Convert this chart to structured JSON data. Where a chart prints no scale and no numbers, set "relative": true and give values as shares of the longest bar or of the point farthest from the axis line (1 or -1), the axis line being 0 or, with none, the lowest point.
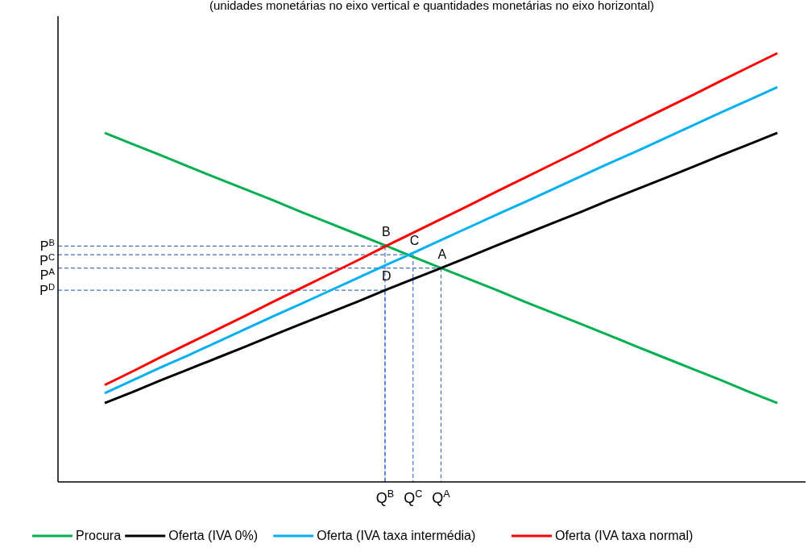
{
  "chart_data": {
    "type": "line",
    "title": "(unidades monetárias no eixo vertical e quantidades monetárias no eixo horizontal)",
    "relative": true,
    "categories": [
      null,
      null,
      null,
      null,
      null,
      null,
      null,
      null,
      null,
      null,
      "Q$^{B}$",
      "Q$^{C}$",
      "Q$^{A}$",
      null,
      null,
      null,
      null,
      null,
      null,
      null,
      null,
      null,
      null,
      null,
      null
    ],
    "series": [
      {
        "name": "Procura",
        "color": "#00b050",
        "values": [
          0.814,
          0.788,
          0.762,
          0.735,
          0.709,
          0.683,
          0.657,
          0.63,
          0.604,
          0.578,
          0.552,
          0.525,
          0.499,
          0.473,
          0.447,
          0.42,
          0.394,
          0.368,
          0.342,
          0.315,
          0.289,
          0.263,
          0.237,
          0.21,
          0.184
        ]
      },
      {
        "name": "Oferta (IVA 0%)",
        "color": "#000000",
        "values": [
          0.184,
          0.21,
          0.237,
          0.263,
          0.289,
          0.315,
          0.342,
          0.368,
          0.394,
          0.42,
          0.447,
          0.473,
          0.499,
          0.525,
          0.552,
          0.578,
          0.604,
          0.63,
          0.657,
          0.683,
          0.709,
          0.735,
          0.762,
          0.788,
          0.814
        ]
      },
      {
        "name": "Oferta (IVA taxa intermédia)",
        "color": "#00b0f0",
        "values": [
          0.207,
          0.237,
          0.267,
          0.296,
          0.326,
          0.356,
          0.386,
          0.415,
          0.445,
          0.475,
          0.505,
          0.534,
          0.564,
          0.594,
          0.624,
          0.653,
          0.683,
          0.713,
          0.743,
          0.772,
          0.802,
          0.832,
          0.862,
          0.891,
          0.921
        ]
      },
      {
        "name": "Oferta (IVA taxa normal)",
        "color": "#ff0000",
        "values": [
          0.226,
          0.258,
          0.291,
          0.323,
          0.355,
          0.387,
          0.42,
          0.452,
          0.484,
          0.516,
          0.549,
          0.581,
          0.613,
          0.645,
          0.678,
          0.71,
          0.742,
          0.774,
          0.807,
          0.839,
          0.871,
          0.903,
          0.936,
          0.968,
          1.0
        ]
      }
    ],
    "annotations": [
      {
        "text": "A",
        "x": "Q$^{A}$",
        "y": 0.499
      },
      {
        "text": "B",
        "x": "Q$^{B}$",
        "y": 0.55
      },
      {
        "text": "C",
        "x": "Q$^{C}$",
        "y": 0.53
      },
      {
        "text": "D",
        "x": "Q$^{B}$",
        "y": 0.447
      },
      "P$^{A}$",
      "P$^{B}$",
      "P$^{C}$",
      "P$^{D}$"
    ],
    "legend": "bottom",
    "marker": "none",
    "line_style": "solid"
  }
}
